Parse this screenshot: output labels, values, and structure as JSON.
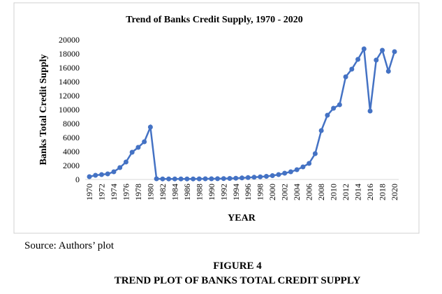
{
  "chart_data": {
    "type": "line",
    "title": "Trend of Banks Credit Supply, 1970 - 2020",
    "xlabel": "YEAR",
    "ylabel": "Banks Total Credit Supply",
    "x": [
      1970,
      1971,
      1972,
      1973,
      1974,
      1975,
      1976,
      1977,
      1978,
      1979,
      1980,
      1981,
      1982,
      1983,
      1984,
      1985,
      1986,
      1987,
      1988,
      1989,
      1990,
      1991,
      1992,
      1993,
      1994,
      1995,
      1996,
      1997,
      1998,
      1999,
      2000,
      2001,
      2002,
      2003,
      2004,
      2005,
      2006,
      2007,
      2008,
      2009,
      2010,
      2011,
      2012,
      2013,
      2014,
      2015,
      2016,
      2017,
      2018,
      2019,
      2020
    ],
    "series": [
      {
        "color": "#4472c4",
        "values": [
          400,
          600,
          700,
          800,
          1100,
          1700,
          2500,
          3900,
          4600,
          5400,
          7500,
          100,
          80,
          80,
          80,
          80,
          80,
          80,
          90,
          100,
          100,
          110,
          130,
          150,
          180,
          220,
          270,
          320,
          380,
          450,
          550,
          700,
          900,
          1100,
          1400,
          1800,
          2300,
          3700,
          7000,
          9200,
          10200,
          10700,
          14700,
          15800,
          17200,
          18700,
          9800,
          17100,
          18500,
          15500,
          18300
        ]
      }
    ],
    "xlim": [
      1970,
      2020
    ],
    "xticks": [
      1970,
      1972,
      1974,
      1976,
      1978,
      1980,
      1982,
      1984,
      1986,
      1988,
      1990,
      1992,
      1994,
      1996,
      1998,
      2000,
      2002,
      2004,
      2006,
      2008,
      2010,
      2012,
      2014,
      2016,
      2018,
      2020
    ],
    "ylim": [
      0,
      20000
    ],
    "yticks": [
      0,
      2000,
      4000,
      6000,
      8000,
      10000,
      12000,
      14000,
      16000,
      18000,
      20000
    ],
    "grid": false
  },
  "source": "Source: Authors’ plot",
  "figure_label": "FIGURE 4",
  "caption": "TREND PLOT OF BANKS TOTAL CREDIT SUPPLY"
}
